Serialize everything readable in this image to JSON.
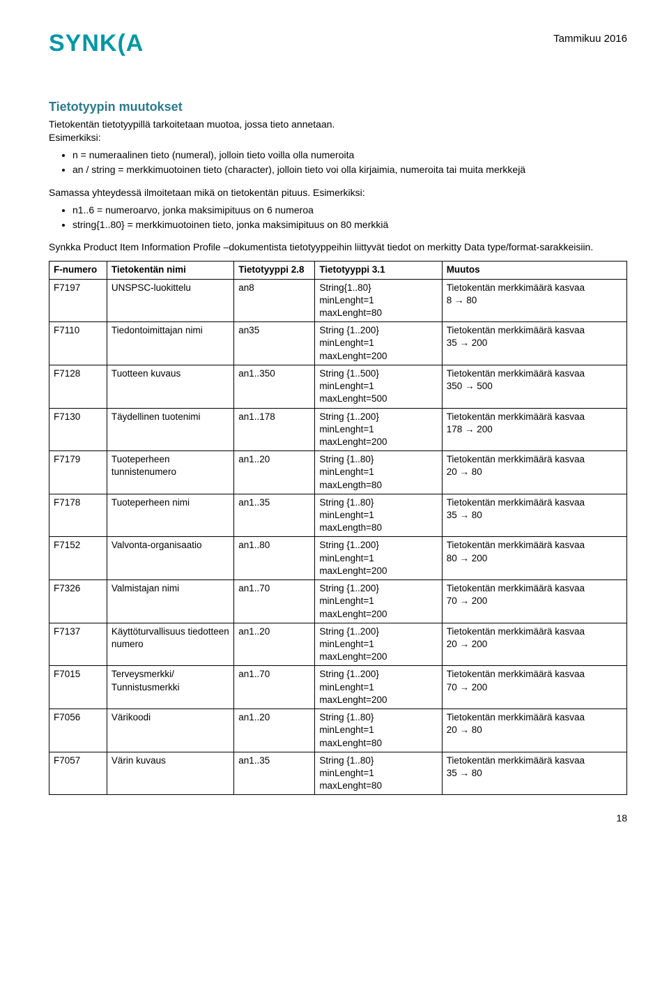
{
  "header": {
    "logo_text": "SYNK(A",
    "date": "Tammikuu 2016"
  },
  "section_title": "Tietotyypin muutokset",
  "intro": "Tietokentän tietotyypillä tarkoitetaan muotoa, jossa tieto annetaan.\nEsimerkiksi:",
  "bullets1": [
    "n = numeraalinen tieto (numeral), jolloin tieto voilla olla numeroita",
    "an / string = merkkimuotoinen tieto (character), jolloin tieto voi olla kirjaimia, numeroita tai muita merkkejä"
  ],
  "para2": "Samassa yhteydessä ilmoitetaan mikä on tietokentän pituus. Esimerkiksi:",
  "bullets2": [
    "n1..6 = numeroarvo, jonka maksimipituus on 6 numeroa",
    "string{1..80} = merkkimuotoinen tieto, jonka maksimipituus on 80 merkkiä"
  ],
  "para3": "Synkka Product Item Information Profile –dokumentista tietotyyppeihin liittyvät tiedot on merkitty Data type/format-sarakkeisiin.",
  "table": {
    "columns": [
      "F-numero",
      "Tietokentän nimi",
      "Tietotyyppi 2.8",
      "Tietotyyppi 3.1",
      "Muutos"
    ],
    "column_widths": [
      "10%",
      "22%",
      "14%",
      "22%",
      "32%"
    ],
    "rows": [
      [
        "F7197",
        "UNSPSC-luokittelu",
        "an8",
        "String{1..80}\nminLenght=1\nmaxLenght=80",
        "Tietokentän merkkimäärä kasvaa\n8 → 80"
      ],
      [
        "F7110",
        "Tiedontoimittajan nimi",
        "an35",
        "String {1..200}\nminLenght=1\nmaxLenght=200",
        "Tietokentän merkkimäärä kasvaa\n35 → 200"
      ],
      [
        "F7128",
        "Tuotteen kuvaus",
        "an1..350",
        "String {1..500}\nminLenght=1\nmaxLenght=500",
        "Tietokentän merkkimäärä kasvaa\n350 → 500"
      ],
      [
        "F7130",
        "Täydellinen tuotenimi",
        "an1..178",
        "String {1..200}\nminLenght=1\nmaxLenght=200",
        "Tietokentän merkkimäärä kasvaa\n178 → 200"
      ],
      [
        "F7179",
        "Tuoteperheen tunnistenumero",
        "an1..20",
        "String {1..80}\nminLenght=1\nmaxLength=80",
        "Tietokentän merkkimäärä kasvaa\n20 → 80"
      ],
      [
        "F7178",
        "Tuoteperheen nimi",
        "an1..35",
        "String {1..80}\nminLenght=1\nmaxLength=80",
        "Tietokentän merkkimäärä kasvaa\n35 → 80"
      ],
      [
        "F7152",
        "Valvonta-organisaatio",
        "an1..80",
        "String {1..200}\nminLenght=1\nmaxLenght=200",
        "Tietokentän merkkimäärä kasvaa\n80 → 200"
      ],
      [
        "F7326",
        "Valmistajan nimi",
        "an1..70",
        "String {1..200}\nminLenght=1\nmaxLenght=200",
        "Tietokentän merkkimäärä kasvaa\n70 → 200"
      ],
      [
        "F7137",
        "Käyttöturvallisuus tiedotteen numero",
        "an1..20",
        "String {1..200}\nminLenght=1\nmaxLenght=200",
        "Tietokentän merkkimäärä kasvaa\n20 → 200"
      ],
      [
        "F7015",
        "Terveysmerkki/ Tunnistusmerkki",
        "an1..70",
        "String {1..200}\nminLenght=1\nmaxLenght=200",
        "Tietokentän merkkimäärä kasvaa\n70 → 200"
      ],
      [
        "F7056",
        "Värikoodi",
        "an1..20",
        "String {1..80}\nminLenght=1\nmaxLenght=80",
        "Tietokentän merkkimäärä kasvaa\n20 → 80"
      ],
      [
        "F7057",
        "Värin kuvaus",
        "an1..35",
        "String {1..80}\nminLenght=1\nmaxLenght=80",
        "Tietokentän merkkimäärä kasvaa\n35 → 80"
      ]
    ]
  },
  "page_number": "18",
  "colors": {
    "accent": "#0097a7",
    "heading": "#2a7b8f",
    "text": "#000000",
    "background": "#ffffff",
    "border": "#000000"
  }
}
